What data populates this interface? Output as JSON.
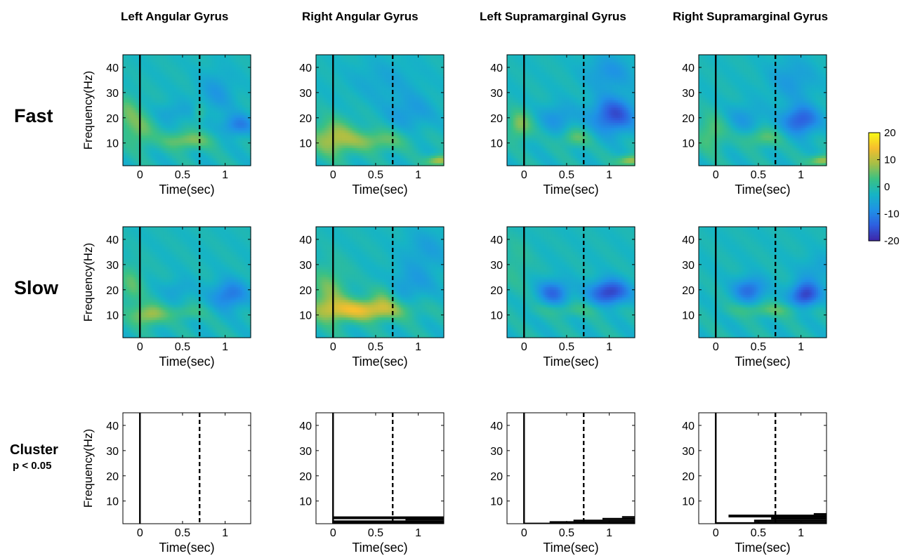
{
  "columns": [
    "Left Angular Gyrus",
    "Right Angular Gyrus",
    "Left Supramarginal Gyrus",
    "Right Supramarginal Gyrus"
  ],
  "rows": [
    {
      "label": "Fast",
      "sub": ""
    },
    {
      "label": "Slow",
      "sub": ""
    },
    {
      "label": "Cluster",
      "sub": "p < 0.05"
    }
  ],
  "chart_data": {
    "type": "heatmap",
    "xlabel": "Time(sec)",
    "ylabel": "Frequency(Hz)",
    "xlim": [
      -0.2,
      1.3
    ],
    "ylim": [
      1,
      45
    ],
    "xticks": [
      0,
      0.5,
      1
    ],
    "xtick_labels": [
      "0",
      "0.5",
      "1"
    ],
    "yticks": [
      10,
      20,
      30,
      40
    ],
    "ytick_labels": [
      "10",
      "20",
      "30",
      "40"
    ],
    "event_lines": [
      {
        "time": 0,
        "style": "solid"
      },
      {
        "time": 0.7,
        "style": "dashed"
      }
    ],
    "colorbar": {
      "range": [
        -20,
        20
      ],
      "ticks": [
        20,
        10,
        0,
        -10,
        -20
      ],
      "tick_labels": [
        "20",
        "10",
        "0",
        "-10",
        "-20"
      ],
      "colormap": [
        "#3e26a8",
        "#2e5fe0",
        "#1f92e6",
        "#16b4c5",
        "#3bc183",
        "#a7bf46",
        "#f5be2e",
        "#f9fb15"
      ]
    },
    "panels": [
      {
        "row": "Fast",
        "column": "Left Angular Gyrus",
        "features": [
          {
            "t": 0.0,
            "f": 15,
            "st": 0.12,
            "sf": 5,
            "v": 7
          },
          {
            "t": 0.55,
            "f": 11,
            "st": 0.2,
            "sf": 2.5,
            "v": 9
          },
          {
            "t": -0.15,
            "f": 22,
            "st": 0.1,
            "sf": 5,
            "v": 6
          },
          {
            "t": 0.7,
            "f": 22,
            "st": 0.05,
            "sf": 2.5,
            "v": 5
          },
          {
            "t": 1.15,
            "f": 17,
            "st": 0.13,
            "sf": 3,
            "v": -9
          },
          {
            "t": 0.9,
            "f": 30,
            "st": 0.15,
            "sf": 6,
            "v": -5
          },
          {
            "t": 0.4,
            "f": 22,
            "st": 0.15,
            "sf": 3,
            "v": -4
          }
        ]
      },
      {
        "row": "Fast",
        "column": "Right Angular Gyrus",
        "features": [
          {
            "t": 0.0,
            "f": 12,
            "st": 0.18,
            "sf": 5,
            "v": 11
          },
          {
            "t": 0.5,
            "f": 11,
            "st": 0.25,
            "sf": 3,
            "v": 8
          },
          {
            "t": 1.25,
            "f": 3,
            "st": 0.1,
            "sf": 1.5,
            "v": 13
          },
          {
            "t": 0.9,
            "f": 22,
            "st": 0.2,
            "sf": 5,
            "v": -5
          },
          {
            "t": 0.6,
            "f": 35,
            "st": 0.3,
            "sf": 6,
            "v": -3
          }
        ]
      },
      {
        "row": "Fast",
        "column": "Left Supramarginal Gyrus",
        "features": [
          {
            "t": -0.05,
            "f": 17,
            "st": 0.1,
            "sf": 4,
            "v": 9
          },
          {
            "t": 0.6,
            "f": 12,
            "st": 0.12,
            "sf": 2.5,
            "v": 7
          },
          {
            "t": 1.05,
            "f": 21,
            "st": 0.18,
            "sf": 5,
            "v": -14
          },
          {
            "t": 0.4,
            "f": 20,
            "st": 0.15,
            "sf": 4,
            "v": -6
          },
          {
            "t": 1.25,
            "f": 3,
            "st": 0.1,
            "sf": 1.5,
            "v": 12
          },
          {
            "t": 1.0,
            "f": 38,
            "st": 0.2,
            "sf": 5,
            "v": -6
          }
        ]
      },
      {
        "row": "Fast",
        "column": "Right Supramarginal Gyrus",
        "features": [
          {
            "t": -0.05,
            "f": 14,
            "st": 0.12,
            "sf": 5,
            "v": 7
          },
          {
            "t": 0.55,
            "f": 12,
            "st": 0.15,
            "sf": 2.5,
            "v": 7
          },
          {
            "t": 1.0,
            "f": 19,
            "st": 0.15,
            "sf": 4,
            "v": -13
          },
          {
            "t": 0.35,
            "f": 20,
            "st": 0.15,
            "sf": 4,
            "v": -5
          },
          {
            "t": 1.25,
            "f": 3,
            "st": 0.1,
            "sf": 1.5,
            "v": 12
          },
          {
            "t": 0.9,
            "f": 35,
            "st": 0.2,
            "sf": 6,
            "v": -5
          }
        ]
      },
      {
        "row": "Slow",
        "column": "Left Angular Gyrus",
        "features": [
          {
            "t": 0.1,
            "f": 10,
            "st": 0.14,
            "sf": 3,
            "v": 11
          },
          {
            "t": 0.55,
            "f": 11,
            "st": 0.15,
            "sf": 2,
            "v": 5
          },
          {
            "t": -0.1,
            "f": 22,
            "st": 0.1,
            "sf": 6,
            "v": 6
          },
          {
            "t": 1.05,
            "f": 18,
            "st": 0.15,
            "sf": 4,
            "v": -10
          },
          {
            "t": 0.45,
            "f": 20,
            "st": 0.12,
            "sf": 3,
            "v": -4
          }
        ]
      },
      {
        "row": "Slow",
        "column": "Right Angular Gyrus",
        "features": [
          {
            "t": 0.35,
            "f": 12,
            "st": 0.35,
            "sf": 3,
            "v": 15
          },
          {
            "t": -0.05,
            "f": 18,
            "st": 0.15,
            "sf": 8,
            "v": 8
          },
          {
            "t": 0.6,
            "f": 18,
            "st": 0.1,
            "sf": 4,
            "v": 5
          },
          {
            "t": 0.9,
            "f": 22,
            "st": 0.2,
            "sf": 5,
            "v": -5
          },
          {
            "t": 1.1,
            "f": 36,
            "st": 0.2,
            "sf": 6,
            "v": -4
          }
        ]
      },
      {
        "row": "Slow",
        "column": "Left Supramarginal Gyrus",
        "features": [
          {
            "t": 0.35,
            "f": 19,
            "st": 0.13,
            "sf": 3.5,
            "v": -11
          },
          {
            "t": 1.0,
            "f": 19,
            "st": 0.16,
            "sf": 3.5,
            "v": -16
          },
          {
            "t": 0.55,
            "f": 12,
            "st": 0.3,
            "sf": 2,
            "v": 4
          },
          {
            "t": -0.1,
            "f": 30,
            "st": 0.12,
            "sf": 8,
            "v": 3
          }
        ]
      },
      {
        "row": "Slow",
        "column": "Right Supramarginal Gyrus",
        "features": [
          {
            "t": 0.4,
            "f": 20,
            "st": 0.13,
            "sf": 3.5,
            "v": -11
          },
          {
            "t": 1.05,
            "f": 18,
            "st": 0.12,
            "sf": 3.5,
            "v": -16
          },
          {
            "t": 0.6,
            "f": 12,
            "st": 0.3,
            "sf": 2,
            "v": 6
          },
          {
            "t": 1.2,
            "f": 28,
            "st": 0.15,
            "sf": 4,
            "v": -4
          }
        ]
      },
      {
        "row": "Cluster",
        "column": "Left Angular Gyrus",
        "clusters": []
      },
      {
        "row": "Cluster",
        "column": "Right Angular Gyrus",
        "clusters": [
          {
            "t0": 0.0,
            "t1": 1.3,
            "f0": 1.0,
            "f1": 2.3
          },
          {
            "t0": 0.0,
            "t1": 1.3,
            "f0": 2.8,
            "f1": 3.9
          },
          {
            "t0": 0.85,
            "t1": 1.3,
            "f0": 2.3,
            "f1": 2.8
          }
        ]
      },
      {
        "row": "Cluster",
        "column": "Left Supramarginal Gyrus",
        "clusters": [
          {
            "t0": 0.0,
            "t1": 1.3,
            "f0": 1.0,
            "f1": 1.4
          },
          {
            "t0": 0.3,
            "t1": 1.3,
            "f0": 1.4,
            "f1": 2.0
          },
          {
            "t0": 0.58,
            "t1": 1.3,
            "f0": 2.0,
            "f1": 2.6
          },
          {
            "t0": 0.92,
            "t1": 1.3,
            "f0": 2.6,
            "f1": 3.3
          },
          {
            "t0": 1.15,
            "t1": 1.3,
            "f0": 3.3,
            "f1": 4.0
          }
        ]
      },
      {
        "row": "Cluster",
        "column": "Right Supramarginal Gyrus",
        "clusters": [
          {
            "t0": 0.0,
            "t1": 1.3,
            "f0": 1.0,
            "f1": 1.6
          },
          {
            "t0": 0.45,
            "t1": 1.3,
            "f0": 1.6,
            "f1": 2.6
          },
          {
            "t0": 0.65,
            "t1": 1.3,
            "f0": 2.6,
            "f1": 3.5
          },
          {
            "t0": 0.15,
            "t1": 1.3,
            "f0": 3.5,
            "f1": 4.6
          },
          {
            "t0": 1.15,
            "t1": 1.3,
            "f0": 4.6,
            "f1": 5.2
          }
        ]
      }
    ]
  }
}
